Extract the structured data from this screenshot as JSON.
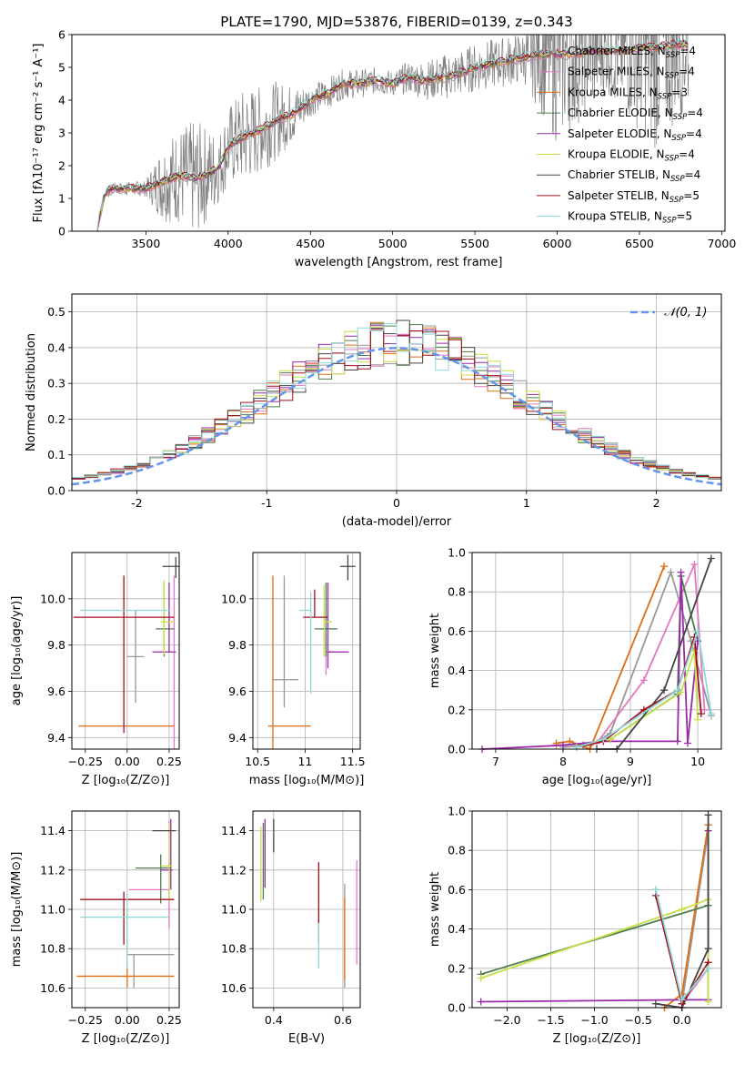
{
  "figure": {
    "title": "PLATE=1790, MJD=53876, FIBERID=0139, z=0.343"
  },
  "series_styles": [
    {
      "name": "Chabrier MILES, N",
      "sub": "SSP",
      "suffix": "=4",
      "color": "#999999"
    },
    {
      "name": "Salpeter MILES, N",
      "sub": "SSP",
      "suffix": "=4",
      "color": "#e377c2"
    },
    {
      "name": "Kroupa MILES, N",
      "sub": "SSP",
      "suffix": "=3",
      "color": "#e06d13"
    },
    {
      "name": "Chabrier ELODIE, N",
      "sub": "SSP",
      "suffix": "=4",
      "color": "#4c7d4c"
    },
    {
      "name": "Salpeter ELODIE, N",
      "sub": "SSP",
      "suffix": "=4",
      "color": "#9a2aa8"
    },
    {
      "name": "Kroupa ELODIE, N",
      "sub": "SSP",
      "suffix": "=4",
      "color": "#c7e04a"
    },
    {
      "name": "Chabrier STELIB, N",
      "sub": "SSP",
      "suffix": "=4",
      "color": "#444444"
    },
    {
      "name": "Salpeter STELIB, N",
      "sub": "SSP",
      "suffix": "=5",
      "color": "#a40f1a"
    },
    {
      "name": "Kroupa STELIB, N",
      "sub": "SSP",
      "suffix": "=5",
      "color": "#8ed8d8"
    }
  ],
  "chart_data": [
    {
      "id": "spectrum",
      "type": "line",
      "title": "PLATE=1790, MJD=53876, FIBERID=0139, z=0.343",
      "xlabel": "wavelength [Angstrom, rest frame]",
      "ylabel": "Flux [fλ10⁻¹⁷ erg cm⁻² s⁻¹ A⁻¹]",
      "xlim": [
        3050,
        7020
      ],
      "ylim": [
        0,
        6
      ],
      "xticks": [
        3500,
        4000,
        4500,
        5000,
        5500,
        6000,
        6500,
        7000
      ],
      "yticks": [
        0,
        1,
        2,
        3,
        4,
        5,
        6
      ],
      "grid": false,
      "legend": "top-right",
      "model_continuum": {
        "x": [
          3200,
          3250,
          3300,
          3400,
          3500,
          3600,
          3700,
          3800,
          3900,
          3950,
          4000,
          4100,
          4200,
          4300,
          4400,
          4500,
          4600,
          4700,
          4800,
          4900,
          5000,
          5100,
          5200,
          5300,
          5400,
          5500,
          5600,
          5700,
          5800,
          5900,
          6000,
          6100,
          6200,
          6300,
          6400,
          6500,
          6600,
          6700,
          6800
        ],
        "y": [
          0.0,
          1.15,
          1.3,
          1.3,
          1.3,
          1.5,
          1.7,
          1.6,
          1.8,
          2.0,
          2.6,
          2.9,
          3.1,
          3.4,
          3.6,
          4.0,
          4.2,
          4.5,
          4.5,
          4.6,
          4.5,
          4.7,
          4.6,
          4.7,
          4.8,
          5.0,
          5.1,
          5.2,
          5.3,
          5.4,
          5.4,
          5.4,
          5.5,
          5.5,
          5.5,
          5.6,
          5.6,
          5.7,
          5.7
        ]
      },
      "data_noise_amplitude": {
        "x": [
          3200,
          3500,
          3600,
          3800,
          3950,
          4100,
          4300,
          4500,
          5000,
          5300,
          5800,
          6000,
          6300,
          6600,
          6800
        ],
        "y": [
          0.15,
          0.25,
          1.2,
          1.8,
          1.1,
          1.5,
          1.2,
          0.5,
          0.4,
          0.7,
          0.8,
          2.8,
          1.3,
          3.2,
          2.0
        ]
      }
    },
    {
      "id": "residuals",
      "type": "histogram",
      "xlabel": "(data-model)/error",
      "ylabel": "Normed distribution",
      "xlim": [
        -2.5,
        2.5
      ],
      "ylim": [
        0,
        0.55
      ],
      "xticks": [
        -2,
        -1,
        0,
        1,
        2
      ],
      "yticks": [
        0.0,
        0.1,
        0.2,
        0.3,
        0.4,
        0.5
      ],
      "grid": true,
      "legend": "top-right",
      "reference_curve": {
        "name": "𝒩(0, 1)",
        "mean": 0,
        "sigma": 1,
        "color": "#6495ed"
      },
      "bin_width": 0.1,
      "bin_start": -2.5
    },
    {
      "id": "age-vs-Z",
      "type": "scatter",
      "xlabel": "Z [log₁₀(Z/Z⊙)]",
      "ylabel": "age  [log₁₀(age/yr)]",
      "xlim": [
        -0.33,
        0.31
      ],
      "ylim": [
        9.35,
        10.2
      ],
      "xticks": [
        -0.25,
        0.0,
        0.25
      ],
      "xticklabels": [
        "−0.25",
        "0.00",
        "0.25"
      ],
      "yticks": [
        9.4,
        9.6,
        9.8,
        10.0
      ],
      "grid": true,
      "points": [
        {
          "x": 0.05,
          "y": 9.75,
          "xerr": [
            0.05,
            0.05
          ],
          "yerr": [
            0.2,
            0.2
          ]
        },
        {
          "x": 0.28,
          "y": 9.45,
          "xerr": [
            0.02,
            0.0
          ],
          "yerr": [
            0.1,
            0.65
          ]
        },
        {
          "x": -0.02,
          "y": 9.45,
          "xerr": [
            0.27,
            0.3
          ],
          "yerr": [
            0.0,
            0.0
          ]
        },
        {
          "x": 0.22,
          "y": 9.87,
          "xerr": [
            0.05,
            0.06
          ],
          "yerr": [
            0.12,
            0.2
          ]
        },
        {
          "x": 0.25,
          "y": 9.77,
          "xerr": [
            0.1,
            0.04
          ],
          "yerr": [
            0.0,
            0.3
          ]
        },
        {
          "x": 0.22,
          "y": 9.9,
          "xerr": [
            0.02,
            0.06
          ],
          "yerr": [
            0.14,
            0.18
          ]
        },
        {
          "x": 0.29,
          "y": 10.14,
          "xerr": [
            0.08,
            0.02
          ],
          "yerr": [
            0.05,
            0.04
          ]
        },
        {
          "x": -0.02,
          "y": 9.92,
          "xerr": [
            0.3,
            0.3
          ],
          "yerr": [
            0.5,
            0.18
          ]
        },
        {
          "x": 0.2,
          "y": 9.95,
          "xerr": [
            0.48,
            0.06
          ],
          "yerr": [
            0.0,
            0.0
          ]
        }
      ]
    },
    {
      "id": "age-vs-mass",
      "type": "scatter",
      "xlabel": "mass [log₁₀(M/M⊙)]",
      "xlim": [
        10.45,
        11.58
      ],
      "ylim": [
        9.35,
        10.2
      ],
      "xticks": [
        10.5,
        11.0,
        11.5
      ],
      "yticks": [
        9.4,
        9.6,
        9.8,
        10.0
      ],
      "grid": true,
      "points": [
        {
          "x": 10.78,
          "y": 9.65,
          "xerr": [
            0.12,
            0.15
          ],
          "yerr": [
            0.12,
            0.45
          ]
        },
        {
          "x": 11.22,
          "y": 9.77,
          "xerr": [
            0.0,
            0.24
          ],
          "yerr": [
            0.1,
            0.08
          ]
        },
        {
          "x": 10.66,
          "y": 9.45,
          "xerr": [
            0.05,
            0.4
          ],
          "yerr": [
            0.1,
            0.65
          ]
        },
        {
          "x": 11.22,
          "y": 9.87,
          "xerr": [
            0.12,
            0.12
          ],
          "yerr": [
            0.12,
            0.2
          ]
        },
        {
          "x": 11.24,
          "y": 9.77,
          "xerr": [
            0.0,
            0.22
          ],
          "yerr": [
            0.07,
            0.3
          ]
        },
        {
          "x": 11.2,
          "y": 9.9,
          "xerr": [
            0.0,
            0.08
          ],
          "yerr": [
            0.15,
            0.16
          ]
        },
        {
          "x": 11.45,
          "y": 10.14,
          "xerr": [
            0.08,
            0.08
          ],
          "yerr": [
            0.06,
            0.05
          ]
        },
        {
          "x": 11.1,
          "y": 9.92,
          "xerr": [
            0.12,
            0.14
          ],
          "yerr": [
            0.0,
            0.12
          ]
        },
        {
          "x": 11.06,
          "y": 9.95,
          "xerr": [
            0.12,
            0.0
          ],
          "yerr": [
            0.36,
            0.08
          ]
        }
      ]
    },
    {
      "id": "massweight-vs-age",
      "type": "line",
      "xlabel": "age  [log₁₀(age/yr)]",
      "ylabel": "mass weight",
      "xlim": [
        6.65,
        10.35
      ],
      "ylim": [
        0,
        1
      ],
      "xticks": [
        7,
        8,
        9,
        10
      ],
      "yticks": [
        0.0,
        0.2,
        0.4,
        0.6,
        0.8,
        1.0
      ],
      "grid": true,
      "series": [
        {
          "x": [
            8.0,
            8.4,
            8.7,
            9.6,
            9.9,
            10.2
          ],
          "y": [
            0.01,
            0.02,
            0.08,
            0.9,
            0.55,
            0.17
          ]
        },
        {
          "x": [
            7.9,
            8.5,
            9.2,
            9.95,
            10.1
          ],
          "y": [
            0.02,
            0.03,
            0.35,
            0.94,
            0.2
          ]
        },
        {
          "x": [
            7.9,
            8.1,
            8.4,
            9.5
          ],
          "y": [
            0.03,
            0.04,
            0.0,
            0.93
          ]
        },
        {
          "x": [
            8.3,
            8.7,
            9.7,
            9.75,
            10.0
          ],
          "y": [
            0.02,
            0.05,
            0.28,
            0.88,
            0.55
          ]
        },
        {
          "x": [
            6.8,
            8.0,
            8.6,
            9.7,
            9.75,
            9.85,
            10.0
          ],
          "y": [
            0.0,
            0.02,
            0.04,
            0.04,
            0.9,
            0.03,
            0.55
          ]
        },
        {
          "x": [
            8.2,
            8.7,
            9.75,
            9.95,
            10.0
          ],
          "y": [
            0.01,
            0.05,
            0.29,
            0.5,
            0.15
          ]
        },
        {
          "x": [
            8.5,
            8.8,
            9.5,
            10.2
          ],
          "y": [
            0.0,
            0.0,
            0.3,
            0.97
          ]
        },
        {
          "x": [
            8.2,
            8.6,
            9.2,
            9.7,
            9.95,
            10.05
          ],
          "y": [
            0.01,
            0.04,
            0.2,
            0.3,
            0.57,
            0.18
          ]
        },
        {
          "x": [
            8.2,
            8.6,
            9.7,
            10.0,
            10.2
          ],
          "y": [
            0.01,
            0.05,
            0.3,
            0.6,
            0.18
          ]
        }
      ]
    },
    {
      "id": "mass-vs-Z",
      "type": "scatter",
      "xlabel": "Z [log₁₀(Z/Z⊙)]",
      "ylabel": "mass [log₁₀(M/M⊙)]",
      "xlim": [
        -0.33,
        0.31
      ],
      "ylim": [
        10.5,
        11.5
      ],
      "xticks": [
        -0.25,
        0.0,
        0.25
      ],
      "xticklabels": [
        "−0.25",
        "0.00",
        "0.25"
      ],
      "yticks": [
        10.6,
        10.8,
        11.0,
        11.2,
        11.4
      ],
      "grid": true,
      "points": [
        {
          "x": 0.04,
          "y": 10.77,
          "xerr": [
            0.04,
            0.24
          ],
          "yerr": [
            0.17,
            0.0
          ]
        },
        {
          "x": 0.25,
          "y": 11.1,
          "xerr": [
            0.24,
            0.0
          ],
          "yerr": [
            0.2,
            0.35
          ]
        },
        {
          "x": 0.0,
          "y": 10.66,
          "xerr": [
            0.3,
            0.28
          ],
          "yerr": [
            0.06,
            0.34
          ]
        },
        {
          "x": 0.2,
          "y": 11.21,
          "xerr": [
            0.15,
            0.06
          ],
          "yerr": [
            0.18,
            0.07
          ]
        },
        {
          "x": 0.26,
          "y": 11.2,
          "xerr": [
            0.06,
            0.01
          ],
          "yerr": [
            0.1,
            0.26
          ]
        },
        {
          "x": 0.25,
          "y": 11.22,
          "xerr": [
            0.05,
            0.02
          ],
          "yerr": [
            0.18,
            0.22
          ]
        },
        {
          "x": 0.22,
          "y": 11.4,
          "xerr": [
            0.07,
            0.07
          ],
          "yerr": [
            0.0,
            0.0
          ]
        },
        {
          "x": -0.02,
          "y": 11.05,
          "xerr": [
            0.26,
            0.3
          ],
          "yerr": [
            0.23,
            0.04
          ]
        },
        {
          "x": 0.0,
          "y": 10.96,
          "xerr": [
            0.28,
            0.25
          ],
          "yerr": [
            0.26,
            0.12
          ]
        }
      ]
    },
    {
      "id": "mass-vs-EBV",
      "type": "scatter",
      "xlabel": "E(B-V)",
      "xlim": [
        0.34,
        0.65
      ],
      "ylim": [
        10.5,
        11.5
      ],
      "xticks": [
        0.4,
        0.6
      ],
      "yticks": [
        10.6,
        10.8,
        11.0,
        11.2,
        11.4
      ],
      "grid": true,
      "points": [
        {
          "x": 0.605,
          "y": 10.88,
          "xerr": [
            0,
            0
          ],
          "yerr": [
            0.28,
            0.25
          ]
        },
        {
          "x": 0.64,
          "y": 11.05,
          "xerr": [
            0,
            0
          ],
          "yerr": [
            0.33,
            0.2
          ]
        },
        {
          "x": 0.605,
          "y": 10.76,
          "xerr": [
            0,
            0
          ],
          "yerr": [
            0.12,
            0.3
          ]
        },
        {
          "x": 0.37,
          "y": 11.3,
          "xerr": [
            0,
            0
          ],
          "yerr": [
            0.25,
            0.14
          ]
        },
        {
          "x": 0.375,
          "y": 11.28,
          "xerr": [
            0,
            0
          ],
          "yerr": [
            0.17,
            0.18
          ]
        },
        {
          "x": 0.363,
          "y": 11.24,
          "xerr": [
            0,
            0
          ],
          "yerr": [
            0.2,
            0.18
          ]
        },
        {
          "x": 0.4,
          "y": 11.4,
          "xerr": [
            0,
            0
          ],
          "yerr": [
            0.11,
            0.06
          ]
        },
        {
          "x": 0.53,
          "y": 11.05,
          "xerr": [
            0,
            0
          ],
          "yerr": [
            0.22,
            0.19
          ]
        },
        {
          "x": 0.53,
          "y": 10.88,
          "xerr": [
            0,
            0
          ],
          "yerr": [
            0.18,
            0.05
          ]
        }
      ]
    },
    {
      "id": "massweight-vs-Z",
      "type": "line",
      "xlabel": "Z [log₁₀(Z/Z⊙)]",
      "ylabel": "mass weight",
      "xlim": [
        -2.4,
        0.45
      ],
      "ylim": [
        0,
        1
      ],
      "xticks": [
        -2.0,
        -1.5,
        -1.0,
        -0.5,
        0.0
      ],
      "xticklabels": [
        "−2.0",
        "−1.5",
        "−1.0",
        "−0.5",
        "0.0"
      ],
      "yticks": [
        0.0,
        0.2,
        0.4,
        0.6,
        0.8,
        1.0
      ],
      "grid": true,
      "series": [
        {
          "x": [
            -0.3,
            0.0,
            0.3
          ],
          "y": [
            0.6,
            0.02,
            0.9
          ]
        },
        {
          "x": [
            0.0,
            0.3,
            0.3
          ],
          "y": [
            0.02,
            0.2,
            0.93
          ]
        },
        {
          "x": [
            -0.2,
            0.0,
            0.3
          ],
          "y": [
            0.0,
            0.07,
            0.93
          ]
        },
        {
          "x": [
            -2.3,
            0.3
          ],
          "y": [
            0.17,
            0.52
          ]
        },
        {
          "x": [
            -2.3,
            0.0,
            0.3,
            0.3
          ],
          "y": [
            0.03,
            0.04,
            0.04,
            0.9
          ]
        },
        {
          "x": [
            -2.3,
            0.0,
            0.3,
            0.3
          ],
          "y": [
            0.15,
            0.5,
            0.55,
            0.03
          ]
        },
        {
          "x": [
            -0.3,
            0.0,
            0.3,
            0.3
          ],
          "y": [
            0.02,
            0.0,
            0.3,
            0.98
          ]
        },
        {
          "x": [
            -0.3,
            0.0,
            0.3
          ],
          "y": [
            0.57,
            0.02,
            0.23
          ]
        },
        {
          "x": [
            -0.3,
            0.0,
            0.3
          ],
          "y": [
            0.6,
            0.04,
            0.2
          ]
        }
      ]
    }
  ]
}
